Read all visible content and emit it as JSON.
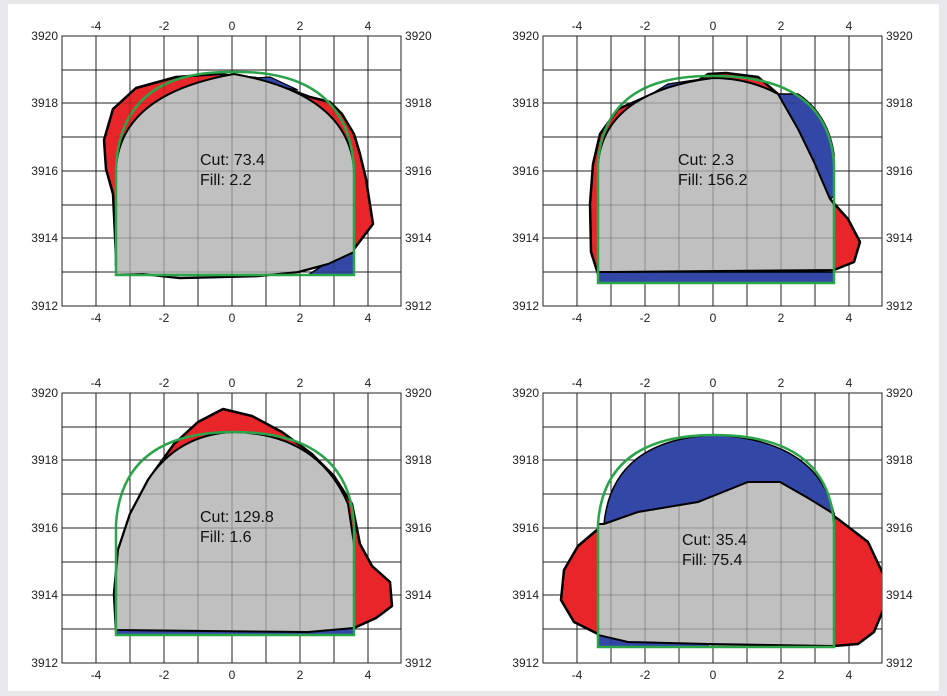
{
  "colors": {
    "cut": "#e8262a",
    "fill": "#3347a7",
    "section": "#c0c0c0",
    "design": "#2ba44a",
    "grid": "#222222",
    "background": "#ffffff"
  },
  "x_ticks": [
    "-4",
    "-2",
    "0",
    "2",
    "4"
  ],
  "y_ticks": [
    "3920",
    "3918",
    "3916",
    "3914",
    "3912"
  ],
  "panels": [
    {
      "cut_label": "Cut: 73.4",
      "fill_label": "Fill: 2.2"
    },
    {
      "cut_label": "Cut: 2.3",
      "fill_label": "Fill: 156.2"
    },
    {
      "cut_label": "Cut: 129.8",
      "fill_label": "Fill: 1.6"
    },
    {
      "cut_label": "Cut: 35.4",
      "fill_label": "Fill: 75.4"
    }
  ]
}
